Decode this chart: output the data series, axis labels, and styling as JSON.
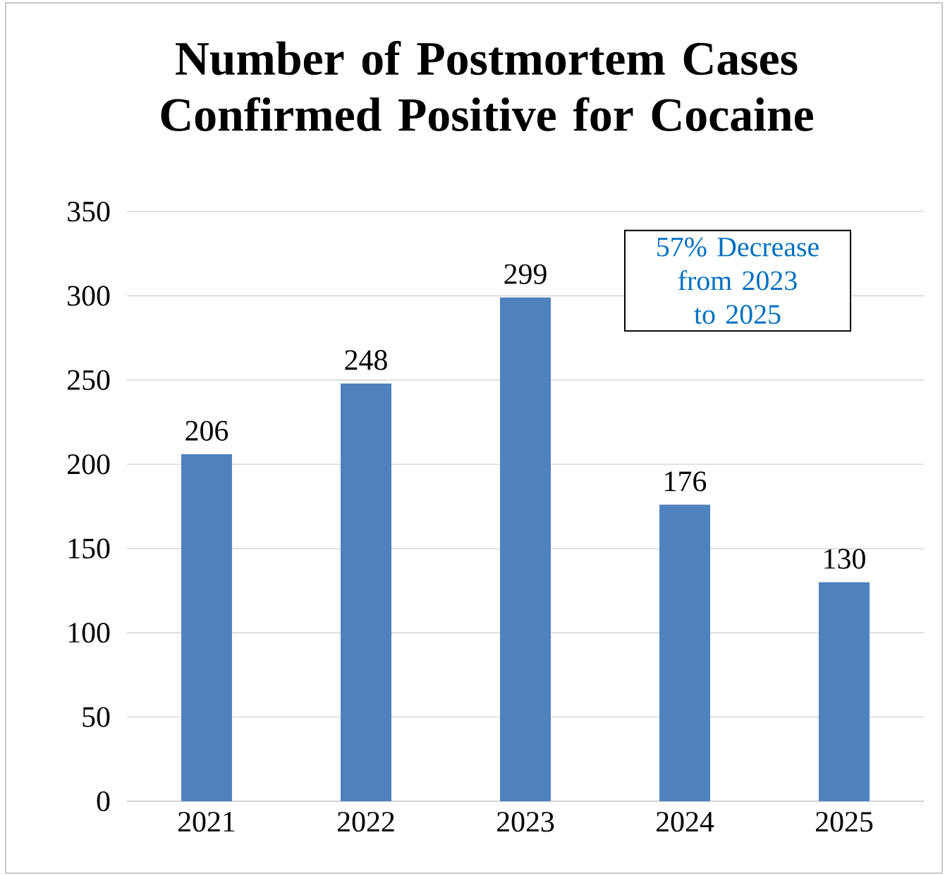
{
  "chart_data": {
    "type": "bar",
    "title": "Number of Postmortem Cases Confirmed Positive for Cocaine",
    "categories": [
      "2021",
      "2022",
      "2023",
      "2024",
      "2025"
    ],
    "values": [
      206,
      248,
      299,
      176,
      130
    ],
    "color": "#4f81bd",
    "ylim": [
      0,
      350
    ],
    "yticks": [
      0,
      50,
      100,
      150,
      200,
      250,
      300,
      350
    ],
    "grid": "y",
    "data_labels": true,
    "annotations": [
      "57% Decrease from 2023 to 2025"
    ]
  }
}
